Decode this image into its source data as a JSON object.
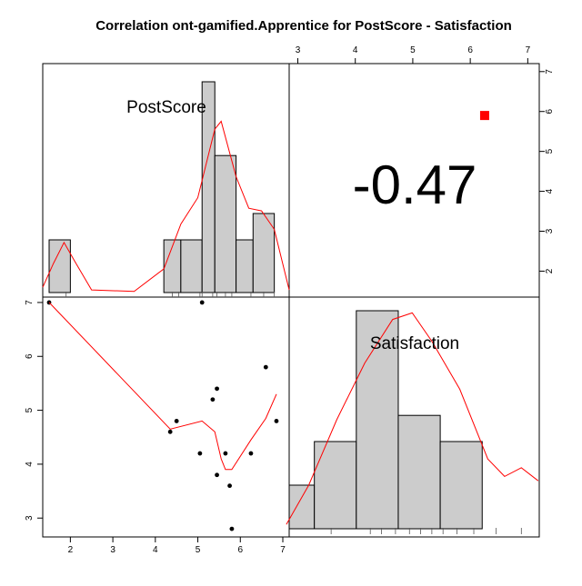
{
  "chart_data": {
    "type": "scatter",
    "title": "Correlation ont-gamified.Apprentice for PostScore - Satisfaction",
    "variables": [
      "PostScore",
      "Satisfaction"
    ],
    "correlation_label": "-0.47",
    "colors": {
      "density": "#ff0000",
      "smooth": "#ff0000",
      "marker": "#ff0000",
      "bar_fill": "#cccccc",
      "point": "#000000"
    },
    "axes": {
      "bottom_ticks": [
        2,
        3,
        4,
        5,
        6,
        7
      ],
      "left_ticks": [
        3,
        4,
        5,
        6,
        7
      ],
      "top_ticks": [
        3,
        4,
        5,
        6,
        7
      ],
      "right_ticks": [
        2,
        3,
        4,
        5,
        6,
        7
      ],
      "x_range": [
        1.35,
        7.15
      ],
      "y_range": [
        2.65,
        7.1
      ],
      "top_range": [
        2.85,
        7.2
      ],
      "right_range": [
        1.35,
        7.2
      ]
    },
    "postscore_histogram": {
      "bins": [
        [
          1.5,
          2.0
        ],
        [
          4.2,
          4.6
        ],
        [
          4.6,
          5.1
        ],
        [
          5.1,
          5.4
        ],
        [
          5.4,
          5.9
        ],
        [
          5.9,
          6.3
        ],
        [
          6.3,
          6.8
        ]
      ],
      "counts": [
        1,
        1,
        1,
        4,
        2.6,
        1,
        1.5
      ],
      "rug": [
        1.9,
        4.4,
        4.55,
        5.05,
        5.1,
        5.35,
        5.45,
        5.65,
        5.8,
        6.25,
        6.55,
        6.8
      ],
      "density": [
        [
          1.35,
          0.1
        ],
        [
          1.6,
          0.55
        ],
        [
          1.85,
          0.95
        ],
        [
          2.1,
          0.6
        ],
        [
          2.5,
          0.05
        ],
        [
          3.5,
          0.02
        ],
        [
          4.2,
          0.45
        ],
        [
          4.6,
          1.3
        ],
        [
          5.0,
          1.8
        ],
        [
          5.4,
          3.1
        ],
        [
          5.55,
          3.25
        ],
        [
          5.9,
          2.2
        ],
        [
          6.2,
          1.6
        ],
        [
          6.5,
          1.55
        ],
        [
          6.8,
          1.2
        ],
        [
          7.15,
          0.05
        ]
      ]
    },
    "satisfaction_histogram": {
      "bins": [
        [
          2.75,
          3.2
        ],
        [
          3.2,
          3.95
        ],
        [
          3.95,
          4.7
        ],
        [
          4.7,
          5.45
        ],
        [
          5.45,
          6.2
        ],
        [
          6.2,
          7.0
        ]
      ],
      "counts": [
        1,
        2,
        5,
        2.6,
        2,
        0
      ],
      "rug": [
        3.5,
        4.2,
        4.4,
        4.65,
        4.9,
        5.1,
        5.3,
        5.5,
        5.75,
        6.05,
        6.45,
        6.9
      ],
      "density": [
        [
          2.7,
          0.1
        ],
        [
          3.1,
          1.0
        ],
        [
          3.6,
          2.5
        ],
        [
          4.1,
          3.8
        ],
        [
          4.6,
          4.8
        ],
        [
          4.95,
          4.95
        ],
        [
          5.3,
          4.3
        ],
        [
          5.8,
          3.2
        ],
        [
          6.3,
          1.6
        ],
        [
          6.6,
          1.2
        ],
        [
          6.9,
          1.4
        ],
        [
          7.2,
          1.1
        ]
      ]
    },
    "scatter_points": [
      {
        "x": 1.5,
        "y": 7.0
      },
      {
        "x": 4.35,
        "y": 4.6
      },
      {
        "x": 4.5,
        "y": 4.8
      },
      {
        "x": 5.05,
        "y": 4.2
      },
      {
        "x": 5.1,
        "y": 7.0
      },
      {
        "x": 5.35,
        "y": 5.2
      },
      {
        "x": 5.45,
        "y": 5.4
      },
      {
        "x": 5.45,
        "y": 3.8
      },
      {
        "x": 5.65,
        "y": 4.2
      },
      {
        "x": 5.75,
        "y": 3.6
      },
      {
        "x": 5.8,
        "y": 2.8
      },
      {
        "x": 6.25,
        "y": 4.2
      },
      {
        "x": 6.6,
        "y": 5.8
      },
      {
        "x": 6.85,
        "y": 4.8
      }
    ],
    "smooth_line": [
      {
        "x": 1.5,
        "y": 7.0
      },
      {
        "x": 4.35,
        "y": 4.65
      },
      {
        "x": 5.1,
        "y": 4.8
      },
      {
        "x": 5.4,
        "y": 4.6
      },
      {
        "x": 5.55,
        "y": 4.1
      },
      {
        "x": 5.65,
        "y": 3.9
      },
      {
        "x": 5.8,
        "y": 3.9
      },
      {
        "x": 6.25,
        "y": 4.45
      },
      {
        "x": 6.6,
        "y": 4.85
      },
      {
        "x": 6.85,
        "y": 5.3
      }
    ],
    "marker": {
      "x": 6.25,
      "y": 5.9
    }
  }
}
